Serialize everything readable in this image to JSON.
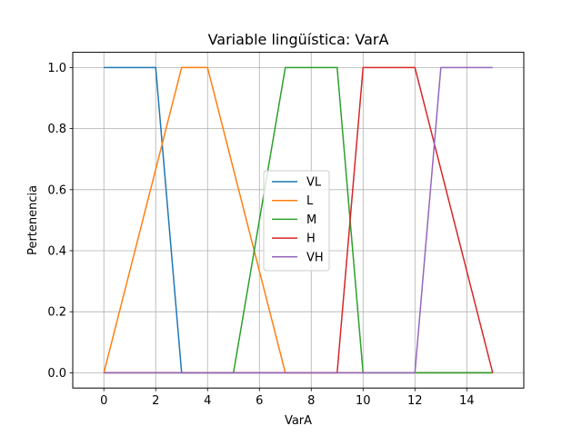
{
  "chart_data": {
    "type": "line",
    "title": "Variable lingüística: VarA",
    "xlabel": "VarA",
    "ylabel": "Pertenencia",
    "xlim": [
      -1.2,
      16.2
    ],
    "ylim": [
      -0.05,
      1.05
    ],
    "xticks": [
      0,
      2,
      4,
      6,
      8,
      10,
      12,
      14
    ],
    "yticks": [
      0.0,
      0.2,
      0.4,
      0.6,
      0.8,
      1.0
    ],
    "xtick_labels": [
      "0",
      "2",
      "4",
      "6",
      "8",
      "10",
      "12",
      "14"
    ],
    "ytick_labels": [
      "0.0",
      "0.2",
      "0.4",
      "0.6",
      "0.8",
      "1.0"
    ],
    "grid": true,
    "legend_position": "center",
    "series": [
      {
        "name": "VL",
        "color": "#1f77b4",
        "x": [
          0,
          2,
          3,
          15
        ],
        "y": [
          1,
          1,
          0,
          0
        ]
      },
      {
        "name": "L",
        "color": "#ff7f0e",
        "x": [
          0,
          3,
          4,
          7,
          15
        ],
        "y": [
          0,
          1,
          1,
          0,
          0
        ]
      },
      {
        "name": "M",
        "color": "#2ca02c",
        "x": [
          0,
          5,
          7,
          9,
          10,
          15
        ],
        "y": [
          0,
          0,
          1,
          1,
          0,
          0
        ]
      },
      {
        "name": "H",
        "color": "#d62728",
        "x": [
          0,
          9,
          10,
          12,
          15
        ],
        "y": [
          0,
          0,
          1,
          1,
          0
        ]
      },
      {
        "name": "VH",
        "color": "#9467bd",
        "x": [
          0,
          12,
          13,
          15
        ],
        "y": [
          0,
          0,
          1,
          1
        ]
      }
    ]
  }
}
